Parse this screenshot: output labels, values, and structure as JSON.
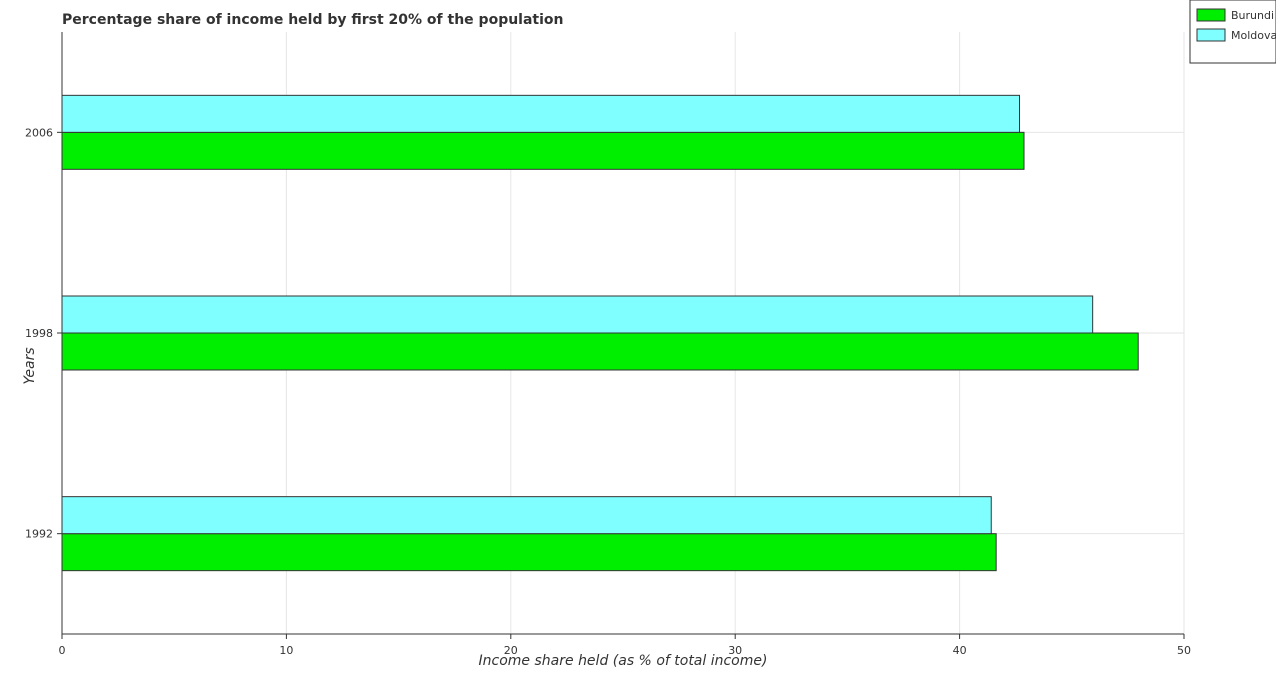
{
  "chart_data": {
    "type": "bar",
    "orientation": "horizontal",
    "title": "Percentage share of income held by first 20% of the population",
    "xlabel": "Income share held (as % of total income)",
    "ylabel": "Years",
    "categories": [
      "1992",
      "1998",
      "2006"
    ],
    "series": [
      {
        "name": "Burundi",
        "color": "#00ee00",
        "values": [
          41.63,
          47.96,
          42.87
        ]
      },
      {
        "name": "Moldova",
        "color": "#7fffff",
        "values": [
          41.41,
          45.93,
          42.67
        ]
      }
    ],
    "xlim": [
      0,
      50
    ],
    "xticks": [
      0,
      10,
      20,
      30,
      40,
      50
    ],
    "grid": true,
    "legend_position": "top-right"
  }
}
